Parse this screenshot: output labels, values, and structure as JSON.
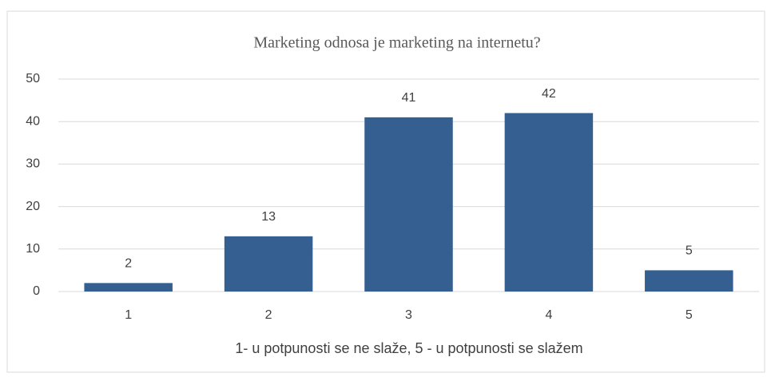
{
  "chart_data": {
    "type": "bar",
    "title": "Marketing odnosa je marketing na internetu?",
    "categories": [
      "1",
      "2",
      "3",
      "4",
      "5"
    ],
    "values": [
      2,
      13,
      41,
      42,
      5
    ],
    "color": "#365f91",
    "ylim": [
      0,
      50
    ],
    "yticks": [
      0,
      10,
      20,
      30,
      40,
      50
    ],
    "grid": true,
    "x_label": "1- u potpunosti se ne slaže, 5 - u potpunosti se slažem"
  }
}
